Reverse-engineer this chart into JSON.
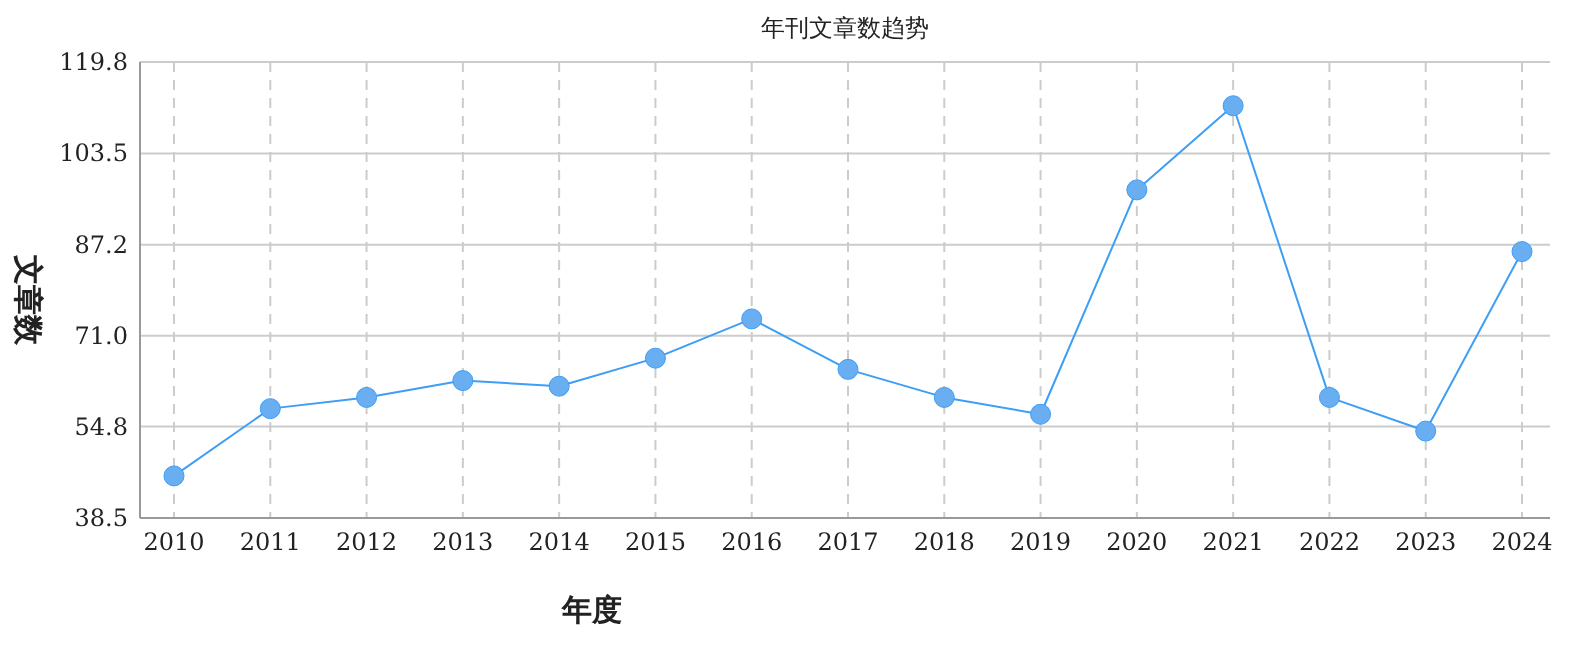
{
  "chart_data": {
    "type": "line",
    "title": "年刊文章数趋势",
    "xlabel": "年度",
    "ylabel": "文章数",
    "categories": [
      "2010",
      "2011",
      "2012",
      "2013",
      "2014",
      "2015",
      "2016",
      "2017",
      "2018",
      "2019",
      "2020",
      "2021",
      "2022",
      "2023",
      "2024"
    ],
    "series": [
      {
        "color": "#3d9ef5",
        "values": [
          46,
          58,
          60,
          63,
          62,
          67,
          74,
          65,
          60,
          57,
          97,
          112,
          60,
          54,
          86
        ]
      }
    ],
    "ylim": [
      38.5,
      119.8
    ],
    "yticks": [
      38.5,
      54.8,
      {
        "value": 71,
        "label": "71.0"
      },
      87.2,
      103.5,
      119.8
    ],
    "grid": true,
    "marker": "circle",
    "line_style": "solid"
  }
}
